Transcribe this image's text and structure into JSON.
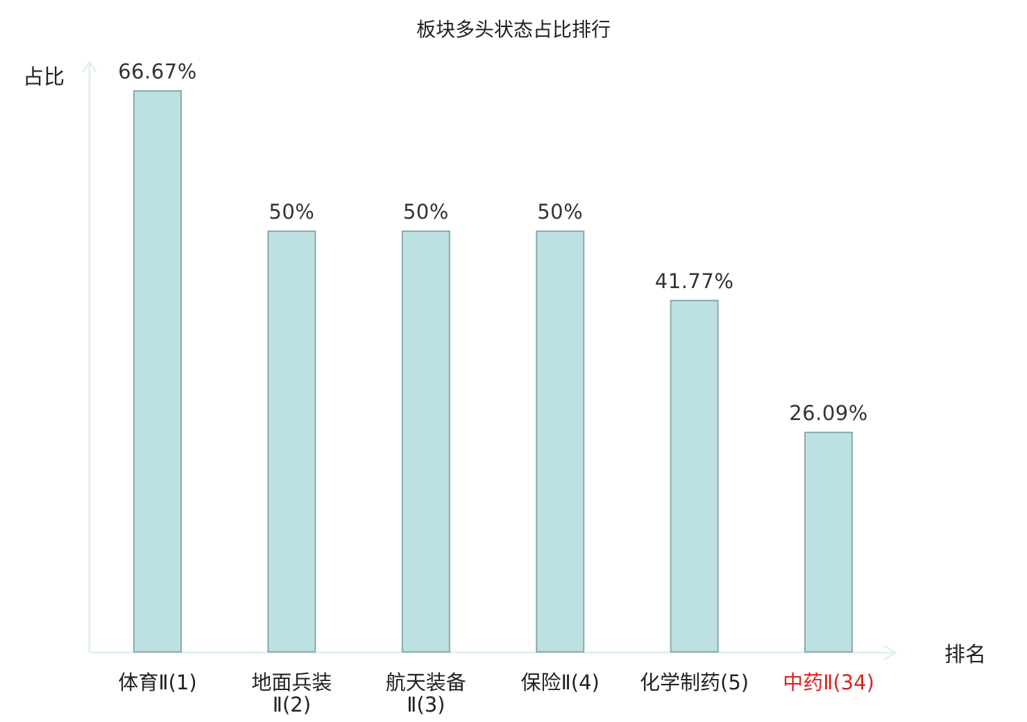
{
  "chart_data": {
    "type": "bar",
    "title": "板块多头状态占比排行",
    "ylabel": "占比",
    "xlabel": "排名",
    "ylim": [
      0,
      66.67
    ],
    "grid": false,
    "legend": "none",
    "categories": [
      {
        "lines": [
          "体育Ⅱ(1)"
        ],
        "highlight": false
      },
      {
        "lines": [
          "地面兵装",
          "Ⅱ(2)"
        ],
        "highlight": false
      },
      {
        "lines": [
          "航天装备",
          "Ⅱ(3)"
        ],
        "highlight": false
      },
      {
        "lines": [
          "保险Ⅱ(4)"
        ],
        "highlight": false
      },
      {
        "lines": [
          "化学制药(5)"
        ],
        "highlight": false
      },
      {
        "lines": [
          "中药Ⅱ(34)"
        ],
        "highlight": true
      }
    ],
    "values": [
      66.67,
      50,
      50,
      50,
      41.77,
      26.09
    ],
    "value_labels": [
      "66.67%",
      "50%",
      "50%",
      "50%",
      "41.77%",
      "26.09%"
    ]
  },
  "colors": {
    "bar_fill": "#bde0e3",
    "bar_stroke": "#8aa9ac",
    "axis": "#e0f2ef",
    "text": "#222222",
    "value_text": "#333333",
    "highlight": "#e02020"
  }
}
